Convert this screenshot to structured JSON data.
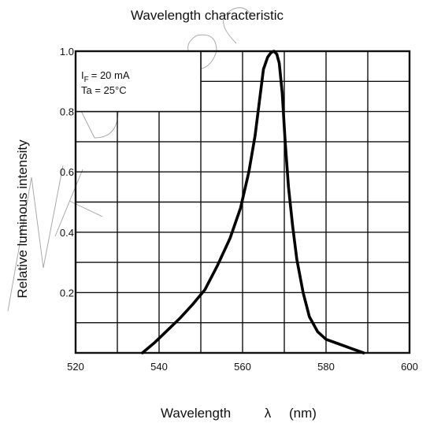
{
  "chart_data": {
    "type": "line",
    "title": "Wavelength characteristic",
    "xlabel": "Wavelength",
    "xlabel_symbol": "λ",
    "xlabel_unit": "(nm)",
    "ylabel": "Relative luminous intensity",
    "xlim": [
      520,
      600
    ],
    "ylim": [
      0,
      1.0
    ],
    "x_ticks": [
      "520",
      "540",
      "560",
      "580",
      "600"
    ],
    "y_ticks": [
      "0.2",
      "0.4",
      "0.6",
      "0.8",
      "1.0"
    ],
    "x_gridlines": [
      530,
      540,
      550,
      560,
      570,
      580,
      590
    ],
    "y_gridlines": [
      0.1,
      0.2,
      0.3,
      0.4,
      0.5,
      0.6,
      0.7,
      0.8,
      0.9
    ],
    "grid": true,
    "conditions": {
      "current": "I",
      "current_sub": "F",
      "current_value": "= 20 mA",
      "temperature": "Ta = 25°C"
    },
    "series": [
      {
        "x": [
          536,
          539,
          542,
          545,
          548,
          551,
          554,
          557,
          559.5,
          561.5,
          563,
          564,
          565,
          566,
          566.8,
          567.5,
          568.2,
          568.8,
          569.5,
          570.2,
          571,
          572,
          573,
          574.5,
          576,
          578,
          580,
          583,
          586,
          589
        ],
        "y": [
          0.0,
          0.035,
          0.075,
          0.115,
          0.16,
          0.21,
          0.29,
          0.38,
          0.48,
          0.6,
          0.72,
          0.83,
          0.94,
          0.98,
          0.995,
          1.0,
          0.99,
          0.96,
          0.86,
          0.7,
          0.55,
          0.42,
          0.31,
          0.2,
          0.12,
          0.07,
          0.045,
          0.03,
          0.015,
          0.0
        ]
      }
    ]
  }
}
